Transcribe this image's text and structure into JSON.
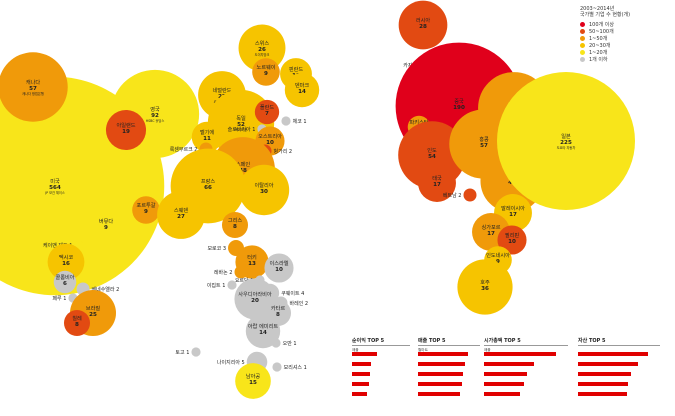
{
  "chart_data": {
    "type": "bubble",
    "legend": {
      "title_lines": [
        "2003~2014년",
        "국가별 기업 수 현황(개)"
      ],
      "items": [
        {
          "label": "100개 이상",
          "color": "#e0001b"
        },
        {
          "label": "50~100개",
          "color": "#e24a12"
        },
        {
          "label": "1~50개",
          "color": "#f09a0a"
        },
        {
          "label": "20~30개",
          "color": "#f6c400"
        },
        {
          "label": "1~20개",
          "color": "#f8e51a"
        },
        {
          "label": "1개 이하",
          "color": "#c8c8c8"
        }
      ]
    },
    "bubbles": [
      {
        "name": "미국",
        "value": 564,
        "sub": "JP 모건 체이스",
        "color": "#f8e51a"
      },
      {
        "name": "캐나다",
        "value": 57,
        "sub": "캐나다 왕립은행",
        "color": "#f09a0a"
      },
      {
        "name": "영국",
        "value": 92,
        "sub": "HSBC 홀딩스",
        "color": "#f8e51a"
      },
      {
        "name": "아일랜드",
        "value": 19,
        "sub": "",
        "color": "#e24a12"
      },
      {
        "name": "스위스",
        "value": 26,
        "sub": "도이치방크",
        "color": "#f6c400"
      },
      {
        "name": "노르웨이",
        "value": 9,
        "sub": "",
        "color": "#f09a0a"
      },
      {
        "name": "네덜란드",
        "value": 27,
        "sub": "로열 더치 셸",
        "color": "#f6c400"
      },
      {
        "name": "독일",
        "value": 52,
        "sub": "폭스바겐",
        "color": "#f6c400"
      },
      {
        "name": "벨기에",
        "value": 11,
        "sub": "",
        "color": "#f6c400"
      },
      {
        "name": "룩셈부르크",
        "value": 2,
        "sub": "",
        "color": "#f09a0a"
      },
      {
        "name": "핀란드",
        "value": 12,
        "sub": "",
        "color": "#f6c400"
      },
      {
        "name": "덴마크",
        "value": 14,
        "sub": "",
        "color": "#f6c400"
      },
      {
        "name": "폴란드",
        "value": 7,
        "sub": "",
        "color": "#e24a12"
      },
      {
        "name": "체코",
        "value": 1,
        "sub": "",
        "color": "#c8c8c8"
      },
      {
        "name": "슬로바키아",
        "value": 1,
        "sub": "",
        "color": "#c8c8c8"
      },
      {
        "name": "오스트리아",
        "value": 10,
        "sub": "",
        "color": "#f09a0a"
      },
      {
        "name": "헝가리",
        "value": 2,
        "sub": "",
        "color": "#e24a12"
      },
      {
        "name": "스페인",
        "value": 48,
        "sub": "",
        "color": "#f09a0a"
      },
      {
        "name": "프랑스",
        "value": 66,
        "sub": "",
        "color": "#f6c400"
      },
      {
        "name": "이탈리아",
        "value": 30,
        "sub": "",
        "color": "#f6c400"
      },
      {
        "name": "그리스",
        "value": 8,
        "sub": "",
        "color": "#f09a0a"
      },
      {
        "name": "포르투갈",
        "value": 9,
        "sub": "",
        "color": "#f09a0a"
      },
      {
        "name": "스웨덴",
        "value": 27,
        "sub": "",
        "color": "#f6c400"
      },
      {
        "name": "버뮤다",
        "value": 9,
        "sub": "",
        "color": "#f8e51a"
      },
      {
        "name": "케이맨 제도",
        "value": 1,
        "sub": "",
        "color": "#f8e51a"
      },
      {
        "name": "멕시코",
        "value": 16,
        "sub": "",
        "color": "#f6c400"
      },
      {
        "name": "콜롬비아",
        "value": 6,
        "sub": "",
        "color": "#c8c8c8"
      },
      {
        "name": "베네수엘라",
        "value": 2,
        "sub": "",
        "color": "#c8c8c8"
      },
      {
        "name": "페루",
        "value": 1,
        "sub": "",
        "color": "#c8c8c8"
      },
      {
        "name": "브라질",
        "value": 25,
        "sub": "",
        "color": "#f09a0a"
      },
      {
        "name": "칠레",
        "value": 8,
        "sub": "",
        "color": "#e24a12"
      },
      {
        "name": "모로코",
        "value": 3,
        "sub": "",
        "color": "#f09a0a"
      },
      {
        "name": "터키",
        "value": 13,
        "sub": "",
        "color": "#f09a0a"
      },
      {
        "name": "레바논",
        "value": 2,
        "sub": "",
        "color": "#f09a0a"
      },
      {
        "name": "이스라엘",
        "value": 10,
        "sub": "",
        "color": "#c8c8c8"
      },
      {
        "name": "요르단",
        "value": 1,
        "sub": "",
        "color": "#c8c8c8"
      },
      {
        "name": "이집트",
        "value": 1,
        "sub": "",
        "color": "#c8c8c8"
      },
      {
        "name": "쿠웨이트",
        "value": 4,
        "sub": "",
        "color": "#c8c8c8"
      },
      {
        "name": "사우디아라비아",
        "value": 20,
        "sub": "",
        "color": "#c8c8c8"
      },
      {
        "name": "바레인",
        "value": 2,
        "sub": "",
        "color": "#c8c8c8"
      },
      {
        "name": "카타르",
        "value": 8,
        "sub": "",
        "color": "#c8c8c8"
      },
      {
        "name": "아랍 에미리트",
        "value": 14,
        "sub": "",
        "color": "#c8c8c8"
      },
      {
        "name": "오만",
        "value": 1,
        "sub": "",
        "color": "#c8c8c8"
      },
      {
        "name": "토고",
        "value": 1,
        "sub": "",
        "color": "#c8c8c8"
      },
      {
        "name": "나이지리아",
        "value": 5,
        "sub": "",
        "color": "#c8c8c8"
      },
      {
        "name": "모리셔스",
        "value": 1,
        "sub": "",
        "color": "#c8c8c8"
      },
      {
        "name": "남아공",
        "value": 15,
        "sub": "",
        "color": "#f8e51a"
      },
      {
        "name": "러시아",
        "value": 28,
        "sub": "",
        "color": "#e24a12"
      },
      {
        "name": "카자흐스탄",
        "value": 3,
        "sub": "",
        "color": "#c8c8c8"
      },
      {
        "name": "중국",
        "value": 190,
        "sub": "",
        "color": "#e0001b"
      },
      {
        "name": "한국",
        "value": 61,
        "sub": "삼성전자",
        "color": "#f09a0a"
      },
      {
        "name": "파키스탄",
        "value": 6,
        "sub": "",
        "color": "#f09a0a"
      },
      {
        "name": "인도",
        "value": 54,
        "sub": "",
        "color": "#e24a12"
      },
      {
        "name": "홍콩",
        "value": 57,
        "sub": "",
        "color": "#f09a0a"
      },
      {
        "name": "태국",
        "value": 17,
        "sub": "",
        "color": "#e24a12"
      },
      {
        "name": "대만",
        "value": 47,
        "sub": "",
        "color": "#f09a0a"
      },
      {
        "name": "베트남",
        "value": 2,
        "sub": "",
        "color": "#e24a12"
      },
      {
        "name": "일본",
        "value": 225,
        "sub": "도요타 자동차",
        "color": "#f8e51a"
      },
      {
        "name": "말레이시아",
        "value": 17,
        "sub": "",
        "color": "#f6c400"
      },
      {
        "name": "싱가포르",
        "value": 17,
        "sub": "",
        "color": "#f09a0a"
      },
      {
        "name": "필리핀",
        "value": 10,
        "sub": "",
        "color": "#e24a12"
      },
      {
        "name": "인도네시아",
        "value": 9,
        "sub": "",
        "color": "#f6c400"
      },
      {
        "name": "호주",
        "value": 36,
        "sub": "",
        "color": "#f6c400"
      }
    ],
    "rankings": [
      {
        "title": "순이익 TOP 5",
        "items": [
          {
            "label": "애플",
            "value": ""
          },
          {
            "label": "",
            "value": ""
          },
          {
            "label": "",
            "value": ""
          },
          {
            "label": "",
            "value": ""
          },
          {
            "label": "",
            "value": ""
          }
        ],
        "fractions": [
          0.55,
          0.42,
          0.4,
          0.36,
          0.33
        ]
      },
      {
        "title": "매출 TOP 5",
        "items": [
          {
            "label": "월마트",
            "value": ""
          },
          {
            "label": "",
            "value": ""
          },
          {
            "label": "",
            "value": ""
          },
          {
            "label": "",
            "value": ""
          },
          {
            "label": "",
            "value": ""
          }
        ],
        "fractions": [
          1.0,
          0.94,
          0.9,
          0.88,
          0.83
        ]
      },
      {
        "title": "시가총액 TOP 5",
        "items": [
          {
            "label": "애플",
            "value": ""
          },
          {
            "label": "",
            "value": ""
          },
          {
            "label": "",
            "value": ""
          },
          {
            "label": "",
            "value": ""
          },
          {
            "label": "",
            "value": ""
          }
        ],
        "fractions": [
          1.0,
          0.7,
          0.6,
          0.55,
          0.5
        ]
      },
      {
        "title": "자산 TOP 5",
        "items": [
          {
            "label": "",
            "value": ""
          },
          {
            "label": "",
            "value": ""
          },
          {
            "label": "",
            "value": ""
          },
          {
            "label": "",
            "value": ""
          },
          {
            "label": "",
            "value": ""
          }
        ],
        "fractions": [
          1.0,
          0.86,
          0.75,
          0.72,
          0.7
        ]
      }
    ]
  }
}
